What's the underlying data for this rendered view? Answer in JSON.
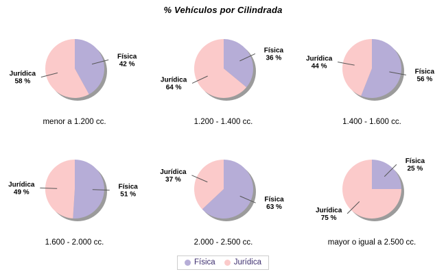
{
  "title": "% Vehículos por Cilindrada",
  "colors": {
    "fisica": "#B6ADD7",
    "juridica": "#FBCACA",
    "shadow": "#9B9B9B",
    "callout_line": "#555555",
    "slice_label_text": "#000000",
    "legend_text": "#3C2D6E",
    "legend_border": "#CCCCCC"
  },
  "legend": {
    "items": [
      {
        "label": "Física",
        "color": "#B6ADD7"
      },
      {
        "label": "Jurídica",
        "color": "#FBCACA"
      }
    ]
  },
  "chart_data": [
    {
      "type": "pie",
      "title": "menor a 1.200 cc.",
      "labels": [
        "Física",
        "Jurídica"
      ],
      "values": [
        42,
        58
      ],
      "value_suffix": " %"
    },
    {
      "type": "pie",
      "title": "1.200 - 1.400 cc.",
      "labels": [
        "Física",
        "Jurídica"
      ],
      "values": [
        36,
        64
      ],
      "value_suffix": " %"
    },
    {
      "type": "pie",
      "title": "1.400 - 1.600 cc.",
      "labels": [
        "Física",
        "Jurídica"
      ],
      "values": [
        56,
        44
      ],
      "value_suffix": " %"
    },
    {
      "type": "pie",
      "title": "1.600 - 2.000 cc.",
      "labels": [
        "Física",
        "Jurídica"
      ],
      "values": [
        51,
        49
      ],
      "value_suffix": " %"
    },
    {
      "type": "pie",
      "title": "2.000 - 2.500 cc.",
      "labels": [
        "Física",
        "Jurídica"
      ],
      "values": [
        63,
        37
      ],
      "value_suffix": " %"
    },
    {
      "type": "pie",
      "title": "mayor o igual a 2.500 cc.",
      "labels": [
        "Física",
        "Jurídica"
      ],
      "values": [
        25,
        75
      ],
      "value_suffix": " %"
    }
  ]
}
